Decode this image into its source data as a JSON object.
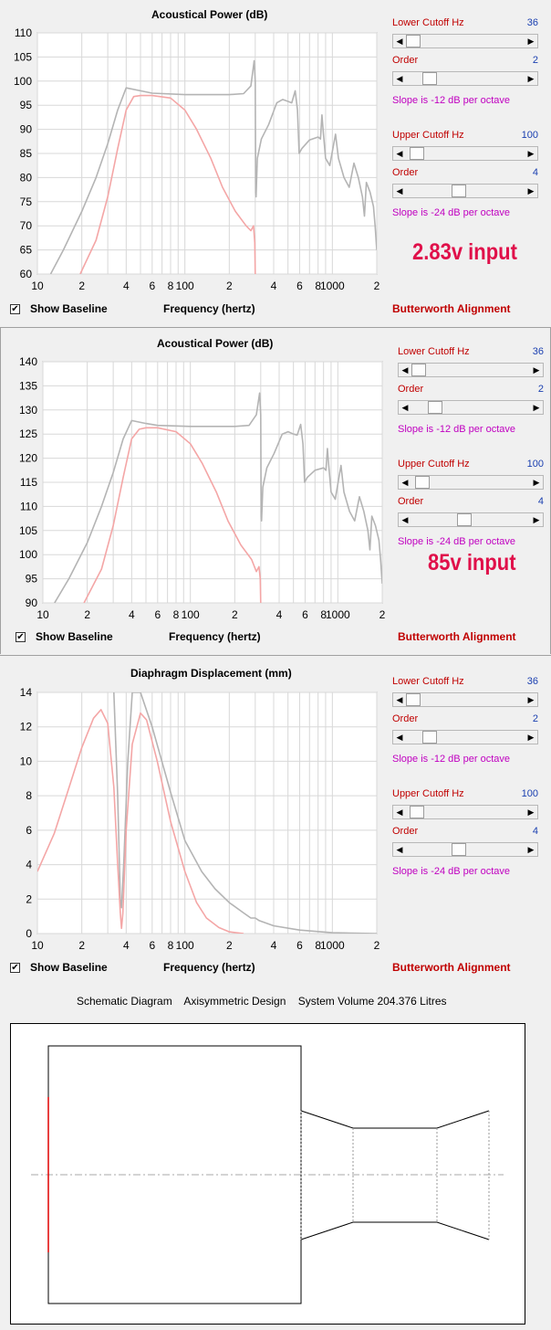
{
  "panels": [
    {
      "title": "Acoustical Power (dB)",
      "controls": {
        "lower_cutoff_label": "Lower Cutoff  Hz",
        "lower_cutoff_value": "36",
        "lower_order_label": "Order",
        "lower_order_value": "2",
        "lower_slope": "Slope is -12 dB per octave",
        "upper_cutoff_label": "Upper Cutoff  Hz",
        "upper_cutoff_value": "100",
        "upper_order_label": "Order",
        "upper_order_value": "4",
        "upper_slope": "Slope is -24 dB per octave"
      },
      "input_note": "2.83v input",
      "show_baseline": "Show Baseline",
      "show_baseline_checked": true,
      "xlabel": "Frequency (hertz)",
      "alignment": "Butterworth Alignment"
    },
    {
      "title": "Acoustical Power (dB)",
      "controls": {
        "lower_cutoff_label": "Lower Cutoff  Hz",
        "lower_cutoff_value": "36",
        "lower_order_label": "Order",
        "lower_order_value": "2",
        "lower_slope": "Slope is -12 dB per octave",
        "upper_cutoff_label": "Upper Cutoff  Hz",
        "upper_cutoff_value": "100",
        "upper_order_label": "Order",
        "upper_order_value": "4",
        "upper_slope": "Slope is -24 dB per octave"
      },
      "input_note": "85v input",
      "show_baseline": "Show Baseline",
      "show_baseline_checked": true,
      "xlabel": "Frequency (hertz)",
      "alignment": "Butterworth Alignment"
    },
    {
      "title": "Diaphragm Displacement (mm)",
      "controls": {
        "lower_cutoff_label": "Lower Cutoff  Hz",
        "lower_cutoff_value": "36",
        "lower_order_label": "Order",
        "lower_order_value": "2",
        "lower_slope": "Slope is -12 dB per octave",
        "upper_cutoff_label": "Upper Cutoff  Hz",
        "upper_cutoff_value": "100",
        "upper_order_label": "Order",
        "upper_order_value": "4",
        "upper_slope": "Slope is -24 dB per octave"
      },
      "input_note": "",
      "show_baseline": "Show Baseline",
      "show_baseline_checked": true,
      "xlabel": "Frequency (hertz)",
      "alignment": "Butterworth Alignment"
    }
  ],
  "schematic": {
    "title_parts": [
      "Schematic Diagram",
      "Axisymmetric Design",
      "System Volume 204.376 Litres"
    ]
  },
  "colors": {
    "baseline_curve": "#b4b4b4",
    "filtered_curve": "#f4a6a6",
    "grid": "#d8d8d8",
    "accent_red": "#c00000",
    "value_blue": "#1a3fb0",
    "slope_magenta": "#c000c0",
    "input_note": "#e0104a"
  },
  "chart_data": [
    {
      "type": "line",
      "title": "Acoustical Power (dB)",
      "xlabel": "Frequency (hertz)",
      "ylabel": "",
      "xscale": "log",
      "xlim": [
        10,
        2000
      ],
      "ylim": [
        60,
        110
      ],
      "yticks": [
        60,
        65,
        70,
        75,
        80,
        85,
        90,
        95,
        100,
        105,
        110
      ],
      "xticks_labels": [
        "10",
        "2",
        "4",
        "6",
        "8",
        "100",
        "2",
        "4",
        "6",
        "8",
        "1000",
        "2"
      ],
      "xticks_values": [
        10,
        20,
        40,
        60,
        80,
        100,
        200,
        400,
        600,
        800,
        1000,
        2000
      ],
      "grid": true,
      "series": [
        {
          "color": "#b4b4b4",
          "points": [
            [
              12.3,
              60
            ],
            [
              15,
              65
            ],
            [
              20,
              73
            ],
            [
              25,
              80
            ],
            [
              30,
              87
            ],
            [
              35,
              94
            ],
            [
              40,
              98.6
            ],
            [
              50,
              98
            ],
            [
              60,
              97.5
            ],
            [
              100,
              97.2
            ],
            [
              200,
              97.2
            ],
            [
              250,
              97.4
            ],
            [
              280,
              99
            ],
            [
              295,
              104.2
            ],
            [
              300,
              100
            ],
            [
              302,
              77
            ],
            [
              304,
              76
            ],
            [
              310,
              84
            ],
            [
              330,
              88
            ],
            [
              370,
              91
            ],
            [
              420,
              95.5
            ],
            [
              460,
              96.2
            ],
            [
              500,
              95.8
            ],
            [
              530,
              95.5
            ],
            [
              560,
              98
            ],
            [
              580,
              94
            ],
            [
              595,
              85
            ],
            [
              620,
              86
            ],
            [
              700,
              87.8
            ],
            [
              800,
              88.4
            ],
            [
              830,
              88
            ],
            [
              850,
              93
            ],
            [
              870,
              89
            ],
            [
              900,
              84
            ],
            [
              960,
              82.5
            ],
            [
              1050,
              89
            ],
            [
              1100,
              84
            ],
            [
              1200,
              80
            ],
            [
              1300,
              78
            ],
            [
              1400,
              83
            ],
            [
              1500,
              80
            ],
            [
              1600,
              76
            ],
            [
              1650,
              72
            ],
            [
              1700,
              79
            ],
            [
              1800,
              77
            ],
            [
              1900,
              74
            ],
            [
              1950,
              70
            ],
            [
              2000,
              65
            ]
          ]
        },
        {
          "color": "#f4a6a6",
          "points": [
            [
              19.5,
              60
            ],
            [
              25,
              67
            ],
            [
              30,
              76
            ],
            [
              35,
              86
            ],
            [
              40,
              94
            ],
            [
              45,
              96.8
            ],
            [
              50,
              97
            ],
            [
              60,
              97
            ],
            [
              80,
              96.5
            ],
            [
              100,
              94
            ],
            [
              120,
              90
            ],
            [
              150,
              84
            ],
            [
              180,
              78
            ],
            [
              220,
              73
            ],
            [
              260,
              70
            ],
            [
              280,
              69
            ],
            [
              292,
              70
            ],
            [
              298,
              66.5
            ],
            [
              300,
              60
            ]
          ]
        }
      ]
    },
    {
      "type": "line",
      "title": "Acoustical Power (dB)",
      "xlabel": "Frequency (hertz)",
      "ylabel": "",
      "xscale": "log",
      "xlim": [
        10,
        2000
      ],
      "ylim": [
        90,
        140
      ],
      "yticks": [
        90,
        95,
        100,
        105,
        110,
        115,
        120,
        125,
        130,
        135,
        140
      ],
      "xticks_labels": [
        "10",
        "2",
        "4",
        "6",
        "8",
        "100",
        "2",
        "4",
        "6",
        "8",
        "1000",
        "2"
      ],
      "xticks_values": [
        10,
        20,
        40,
        60,
        80,
        100,
        200,
        400,
        600,
        800,
        1000,
        2000
      ],
      "grid": true,
      "series": [
        {
          "color": "#b4b4b4",
          "points": [
            [
              12,
              90
            ],
            [
              15,
              95
            ],
            [
              20,
              102.5
            ],
            [
              25,
              110
            ],
            [
              30,
              117
            ],
            [
              35,
              124
            ],
            [
              40,
              127.8
            ],
            [
              50,
              127.2
            ],
            [
              60,
              126.8
            ],
            [
              100,
              126.6
            ],
            [
              200,
              126.6
            ],
            [
              250,
              126.8
            ],
            [
              280,
              129
            ],
            [
              295,
              133.5
            ],
            [
              300,
              129
            ],
            [
              302,
              108
            ],
            [
              304,
              107
            ],
            [
              310,
              114
            ],
            [
              330,
              118
            ],
            [
              370,
              121
            ],
            [
              420,
              125
            ],
            [
              460,
              125.5
            ],
            [
              500,
              125
            ],
            [
              530,
              124.8
            ],
            [
              560,
              127
            ],
            [
              580,
              123
            ],
            [
              595,
              115
            ],
            [
              620,
              116
            ],
            [
              700,
              117.5
            ],
            [
              800,
              118
            ],
            [
              830,
              117.5
            ],
            [
              850,
              122
            ],
            [
              870,
              118
            ],
            [
              900,
              113
            ],
            [
              960,
              111.5
            ],
            [
              1050,
              118.5
            ],
            [
              1100,
              113
            ],
            [
              1200,
              109
            ],
            [
              1300,
              107
            ],
            [
              1400,
              112
            ],
            [
              1500,
              109
            ],
            [
              1600,
              105
            ],
            [
              1650,
              101
            ],
            [
              1700,
              108
            ],
            [
              1800,
              106
            ],
            [
              1900,
              103
            ],
            [
              1950,
              99
            ],
            [
              2000,
              94
            ]
          ]
        },
        {
          "color": "#f4a6a6",
          "points": [
            [
              19,
              90
            ],
            [
              25,
              97
            ],
            [
              30,
              106
            ],
            [
              35,
              116
            ],
            [
              40,
              124
            ],
            [
              45,
              126
            ],
            [
              50,
              126.3
            ],
            [
              60,
              126.3
            ],
            [
              80,
              125.5
            ],
            [
              100,
              123
            ],
            [
              120,
              119
            ],
            [
              150,
              113
            ],
            [
              180,
              107
            ],
            [
              220,
              102
            ],
            [
              260,
              99
            ],
            [
              280,
              96.5
            ],
            [
              292,
              97.5
            ],
            [
              298,
              95
            ],
            [
              300,
              90
            ]
          ]
        }
      ]
    },
    {
      "type": "line",
      "title": "Diaphragm Displacement (mm)",
      "xlabel": "Frequency (hertz)",
      "ylabel": "",
      "xscale": "log",
      "xlim": [
        10,
        2000
      ],
      "ylim": [
        0,
        14
      ],
      "yticks": [
        0,
        2,
        4,
        6,
        8,
        10,
        12,
        14
      ],
      "xticks_labels": [
        "10",
        "2",
        "4",
        "6",
        "8",
        "100",
        "2",
        "4",
        "6",
        "8",
        "1000",
        "2"
      ],
      "xticks_values": [
        10,
        20,
        40,
        60,
        80,
        100,
        200,
        400,
        600,
        800,
        1000,
        2000
      ],
      "grid": true,
      "series": [
        {
          "color": "#b4b4b4",
          "points": [
            [
              33,
              14
            ],
            [
              35,
              8
            ],
            [
              36.5,
              2
            ],
            [
              37.2,
              1.5
            ],
            [
              38.5,
              4
            ],
            [
              41,
              10
            ],
            [
              44,
              14
            ],
            [
              50,
              14
            ],
            [
              60,
              12
            ],
            [
              80,
              8.2
            ],
            [
              100,
              5.4
            ],
            [
              130,
              3.6
            ],
            [
              160,
              2.6
            ],
            [
              200,
              1.8
            ],
            [
              250,
              1.2
            ],
            [
              280,
              0.9
            ],
            [
              300,
              0.9
            ],
            [
              320,
              0.75
            ],
            [
              400,
              0.45
            ],
            [
              600,
              0.2
            ],
            [
              1000,
              0.05
            ],
            [
              2000,
              0
            ]
          ]
        },
        {
          "color": "#f4a6a6",
          "points": [
            [
              10,
              3.6
            ],
            [
              13,
              5.8
            ],
            [
              16,
              8.2
            ],
            [
              20,
              10.8
            ],
            [
              24,
              12.5
            ],
            [
              27,
              13
            ],
            [
              30,
              12.2
            ],
            [
              33,
              8.5
            ],
            [
              35,
              4
            ],
            [
              36.5,
              1.2
            ],
            [
              37.2,
              0.3
            ],
            [
              38,
              1.2
            ],
            [
              40,
              6
            ],
            [
              44,
              11
            ],
            [
              50,
              12.8
            ],
            [
              55,
              12.4
            ],
            [
              65,
              10
            ],
            [
              80,
              6.5
            ],
            [
              100,
              3.6
            ],
            [
              120,
              1.8
            ],
            [
              140,
              0.9
            ],
            [
              170,
              0.35
            ],
            [
              200,
              0.1
            ],
            [
              250,
              0
            ]
          ]
        }
      ]
    }
  ]
}
